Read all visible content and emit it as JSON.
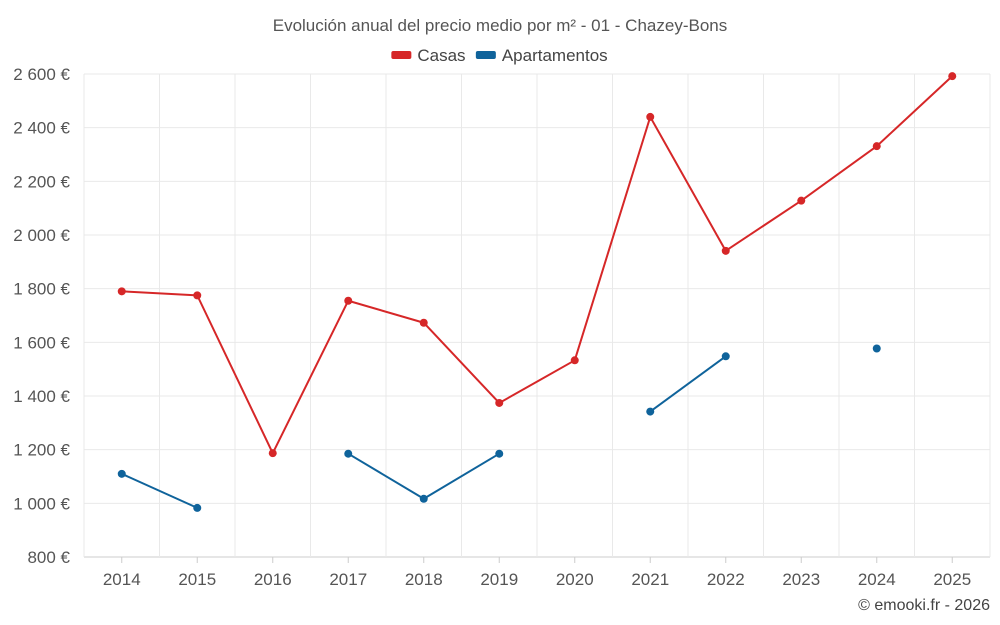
{
  "chart_data": {
    "type": "line",
    "title": "Evolución anual del precio medio por m² - 01 - Chazey-Bons",
    "x": [
      "2014",
      "2015",
      "2016",
      "2017",
      "2018",
      "2019",
      "2020",
      "2021",
      "2022",
      "2023",
      "2024",
      "2025"
    ],
    "series": [
      {
        "name": "Casas",
        "color": "#d62728",
        "values": [
          1790,
          1775,
          1187,
          1755,
          1673,
          1374,
          1533,
          2440,
          1941,
          2128,
          2331,
          2592
        ]
      },
      {
        "name": "Apartamentos",
        "color": "#0f639b",
        "values": [
          1110,
          983,
          null,
          1185,
          1017,
          1185,
          null,
          1342,
          1548,
          null,
          1577,
          null
        ]
      }
    ],
    "ylim": [
      800,
      2600
    ],
    "yticks": [
      800,
      1000,
      1200,
      1400,
      1600,
      1800,
      2000,
      2200,
      2400,
      2600
    ],
    "ytick_labels": [
      "800 €",
      "1 000 €",
      "1 200 €",
      "1 400 €",
      "1 600 €",
      "1 800 €",
      "2 000 €",
      "2 200 €",
      "2 400 €",
      "2 600 €"
    ],
    "grid": true,
    "legend_position": "top-center",
    "xlabel": "",
    "ylabel": ""
  },
  "credit": "© emooki.fr - 2026"
}
